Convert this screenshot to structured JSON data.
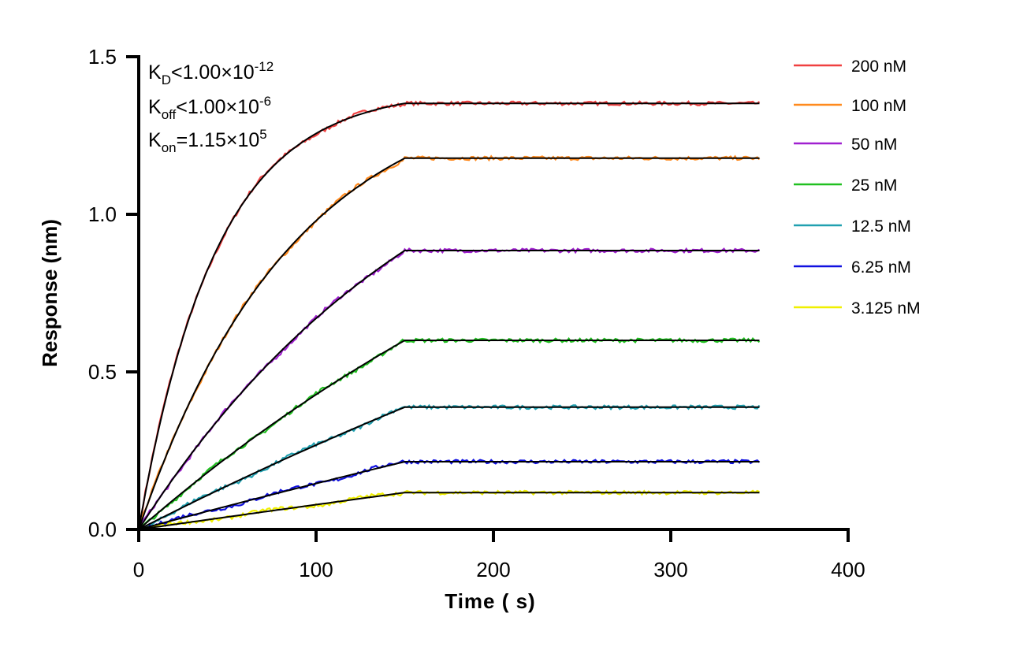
{
  "chart_data": {
    "type": "line",
    "xlabel": "Time ( s)",
    "ylabel": "Response (nm)",
    "xlim": [
      0,
      400
    ],
    "ylim": [
      0,
      1.5
    ],
    "xticks": [
      "0",
      "100",
      "200",
      "300",
      "400"
    ],
    "yticks": [
      "0.0",
      "0.5",
      "1.0",
      "1.5"
    ],
    "grid": false,
    "legend_placement": "right",
    "association_end": 150,
    "dissociation_end": 350,
    "fit_color": "#000000",
    "annotation": {
      "kd": {
        "main": "K",
        "sub": "D",
        "rest": "<1.00×10",
        "sup": "-12"
      },
      "koff": {
        "main": "K",
        "sub": "off",
        "rest": "<1.00×10",
        "sup": "-6"
      },
      "kon": {
        "main": "K",
        "sub": "on",
        "rest": "=1.15×10",
        "sup": "5"
      }
    },
    "kon_value": 115000,
    "series": [
      {
        "name": "200 nM",
        "concentration_nM": 200,
        "response_at_150s": 1.352,
        "color": "#f04040"
      },
      {
        "name": "100 nM",
        "concentration_nM": 100,
        "response_at_150s": 1.178,
        "color": "#ff8a1e"
      },
      {
        "name": "50 nM",
        "concentration_nM": 50,
        "response_at_150s": 0.885,
        "color": "#a020d0"
      },
      {
        "name": "25 nM",
        "concentration_nM": 25,
        "response_at_150s": 0.6,
        "color": "#20c020"
      },
      {
        "name": "12.5 nM",
        "concentration_nM": 12.5,
        "response_at_150s": 0.388,
        "color": "#20a0b0"
      },
      {
        "name": "6.25 nM",
        "concentration_nM": 6.25,
        "response_at_150s": 0.215,
        "color": "#1010e0"
      },
      {
        "name": "3.125 nM",
        "concentration_nM": 3.125,
        "response_at_150s": 0.117,
        "color": "#f0f000"
      }
    ]
  }
}
